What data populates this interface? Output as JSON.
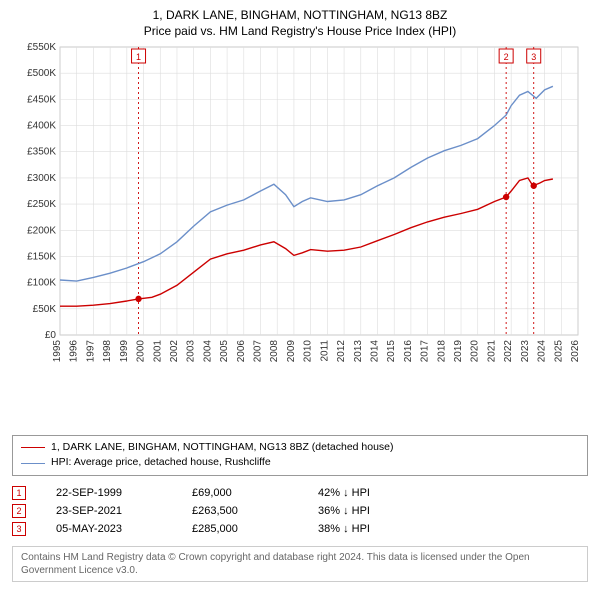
{
  "title_line1": "1, DARK LANE, BINGHAM, NOTTINGHAM, NG13 8BZ",
  "title_line2": "Price paid vs. HM Land Registry's House Price Index (HPI)",
  "chart": {
    "type": "line",
    "background_color": "#ffffff",
    "plot_bg_color": "#ffffff",
    "grid_color": "#dddddd",
    "axis_color": "#888888",
    "label_fontsize": 10,
    "x": {
      "domain": [
        1995,
        2026
      ],
      "ticks": [
        1995,
        1996,
        1997,
        1998,
        1999,
        2000,
        2001,
        2002,
        2003,
        2004,
        2005,
        2006,
        2007,
        2008,
        2009,
        2010,
        2011,
        2012,
        2013,
        2014,
        2015,
        2016,
        2017,
        2018,
        2019,
        2020,
        2021,
        2022,
        2023,
        2024,
        2025,
        2026
      ],
      "tick_labels": [
        "1995",
        "1996",
        "1997",
        "1998",
        "1999",
        "2000",
        "2001",
        "2002",
        "2003",
        "2004",
        "2005",
        "2006",
        "2007",
        "2008",
        "2009",
        "2010",
        "2011",
        "2012",
        "2013",
        "2014",
        "2015",
        "2016",
        "2017",
        "2018",
        "2019",
        "2020",
        "2021",
        "2022",
        "2023",
        "2024",
        "2025",
        "2026"
      ],
      "rotate": -90
    },
    "y": {
      "domain": [
        0,
        550000
      ],
      "ticks": [
        0,
        50000,
        100000,
        150000,
        200000,
        250000,
        300000,
        350000,
        400000,
        450000,
        500000,
        550000
      ],
      "tick_labels": [
        "£0",
        "£50K",
        "£100K",
        "£150K",
        "£200K",
        "£250K",
        "£300K",
        "£350K",
        "£400K",
        "£450K",
        "£500K",
        "£550K"
      ]
    },
    "series": [
      {
        "id": "property",
        "name": "1, DARK LANE, BINGHAM, NOTTINGHAM, NG13 8BZ (detached house)",
        "color": "#cc0000",
        "line_width": 1.4,
        "points": [
          [
            1995.0,
            55000
          ],
          [
            1996.0,
            55000
          ],
          [
            1997.0,
            57000
          ],
          [
            1998.0,
            60000
          ],
          [
            1999.0,
            65000
          ],
          [
            1999.7,
            69000
          ],
          [
            2000.5,
            72000
          ],
          [
            2001.0,
            78000
          ],
          [
            2002.0,
            95000
          ],
          [
            2003.0,
            120000
          ],
          [
            2004.0,
            145000
          ],
          [
            2005.0,
            155000
          ],
          [
            2006.0,
            162000
          ],
          [
            2007.0,
            172000
          ],
          [
            2007.8,
            178000
          ],
          [
            2008.5,
            165000
          ],
          [
            2009.0,
            152000
          ],
          [
            2009.5,
            157000
          ],
          [
            2010.0,
            163000
          ],
          [
            2011.0,
            160000
          ],
          [
            2012.0,
            162000
          ],
          [
            2013.0,
            168000
          ],
          [
            2014.0,
            180000
          ],
          [
            2015.0,
            192000
          ],
          [
            2016.0,
            205000
          ],
          [
            2017.0,
            216000
          ],
          [
            2018.0,
            225000
          ],
          [
            2019.0,
            232000
          ],
          [
            2020.0,
            240000
          ],
          [
            2021.0,
            255000
          ],
          [
            2021.7,
            263500
          ],
          [
            2022.0,
            275000
          ],
          [
            2022.5,
            295000
          ],
          [
            2023.0,
            300000
          ],
          [
            2023.3,
            285000
          ],
          [
            2023.7,
            290000
          ],
          [
            2024.0,
            295000
          ],
          [
            2024.5,
            298000
          ]
        ],
        "markers": [
          {
            "n": "1",
            "x": 1999.7,
            "y": 69000
          },
          {
            "n": "2",
            "x": 2021.7,
            "y": 263500
          },
          {
            "n": "3",
            "x": 2023.35,
            "y": 285000
          }
        ]
      },
      {
        "id": "hpi",
        "name": "HPI: Average price, detached house, Rushcliffe",
        "color": "#6b8fc9",
        "line_width": 1.4,
        "points": [
          [
            1995.0,
            105000
          ],
          [
            1996.0,
            103000
          ],
          [
            1997.0,
            110000
          ],
          [
            1998.0,
            118000
          ],
          [
            1999.0,
            128000
          ],
          [
            2000.0,
            140000
          ],
          [
            2001.0,
            155000
          ],
          [
            2002.0,
            178000
          ],
          [
            2003.0,
            208000
          ],
          [
            2004.0,
            235000
          ],
          [
            2005.0,
            248000
          ],
          [
            2006.0,
            258000
          ],
          [
            2007.0,
            275000
          ],
          [
            2007.8,
            288000
          ],
          [
            2008.5,
            268000
          ],
          [
            2009.0,
            245000
          ],
          [
            2009.5,
            255000
          ],
          [
            2010.0,
            262000
          ],
          [
            2011.0,
            255000
          ],
          [
            2012.0,
            258000
          ],
          [
            2013.0,
            268000
          ],
          [
            2014.0,
            285000
          ],
          [
            2015.0,
            300000
          ],
          [
            2016.0,
            320000
          ],
          [
            2017.0,
            338000
          ],
          [
            2018.0,
            352000
          ],
          [
            2019.0,
            362000
          ],
          [
            2020.0,
            375000
          ],
          [
            2021.0,
            400000
          ],
          [
            2021.7,
            420000
          ],
          [
            2022.0,
            438000
          ],
          [
            2022.5,
            458000
          ],
          [
            2023.0,
            465000
          ],
          [
            2023.5,
            452000
          ],
          [
            2024.0,
            468000
          ],
          [
            2024.5,
            475000
          ]
        ]
      }
    ],
    "vlines": [
      {
        "x": 1999.7,
        "color": "#cc0000",
        "dash": "2,3",
        "badge": "1"
      },
      {
        "x": 2021.7,
        "color": "#cc0000",
        "dash": "2,3",
        "badge": "2"
      },
      {
        "x": 2023.35,
        "color": "#cc0000",
        "dash": "2,3",
        "badge": "3"
      }
    ]
  },
  "legend": {
    "items": [
      {
        "color": "#cc0000",
        "label": "1, DARK LANE, BINGHAM, NOTTINGHAM, NG13 8BZ (detached house)"
      },
      {
        "color": "#6b8fc9",
        "label": "HPI: Average price, detached house, Rushcliffe"
      }
    ]
  },
  "events": [
    {
      "n": "1",
      "date": "22-SEP-1999",
      "price": "£69,000",
      "delta": "42% ↓ HPI"
    },
    {
      "n": "2",
      "date": "23-SEP-2021",
      "price": "£263,500",
      "delta": "36% ↓ HPI"
    },
    {
      "n": "3",
      "date": "05-MAY-2023",
      "price": "£285,000",
      "delta": "38% ↓ HPI"
    }
  ],
  "footnote": "Contains HM Land Registry data © Crown copyright and database right 2024. This data is licensed under the Open Government Licence v3.0.",
  "marker_color": "#cc0000"
}
